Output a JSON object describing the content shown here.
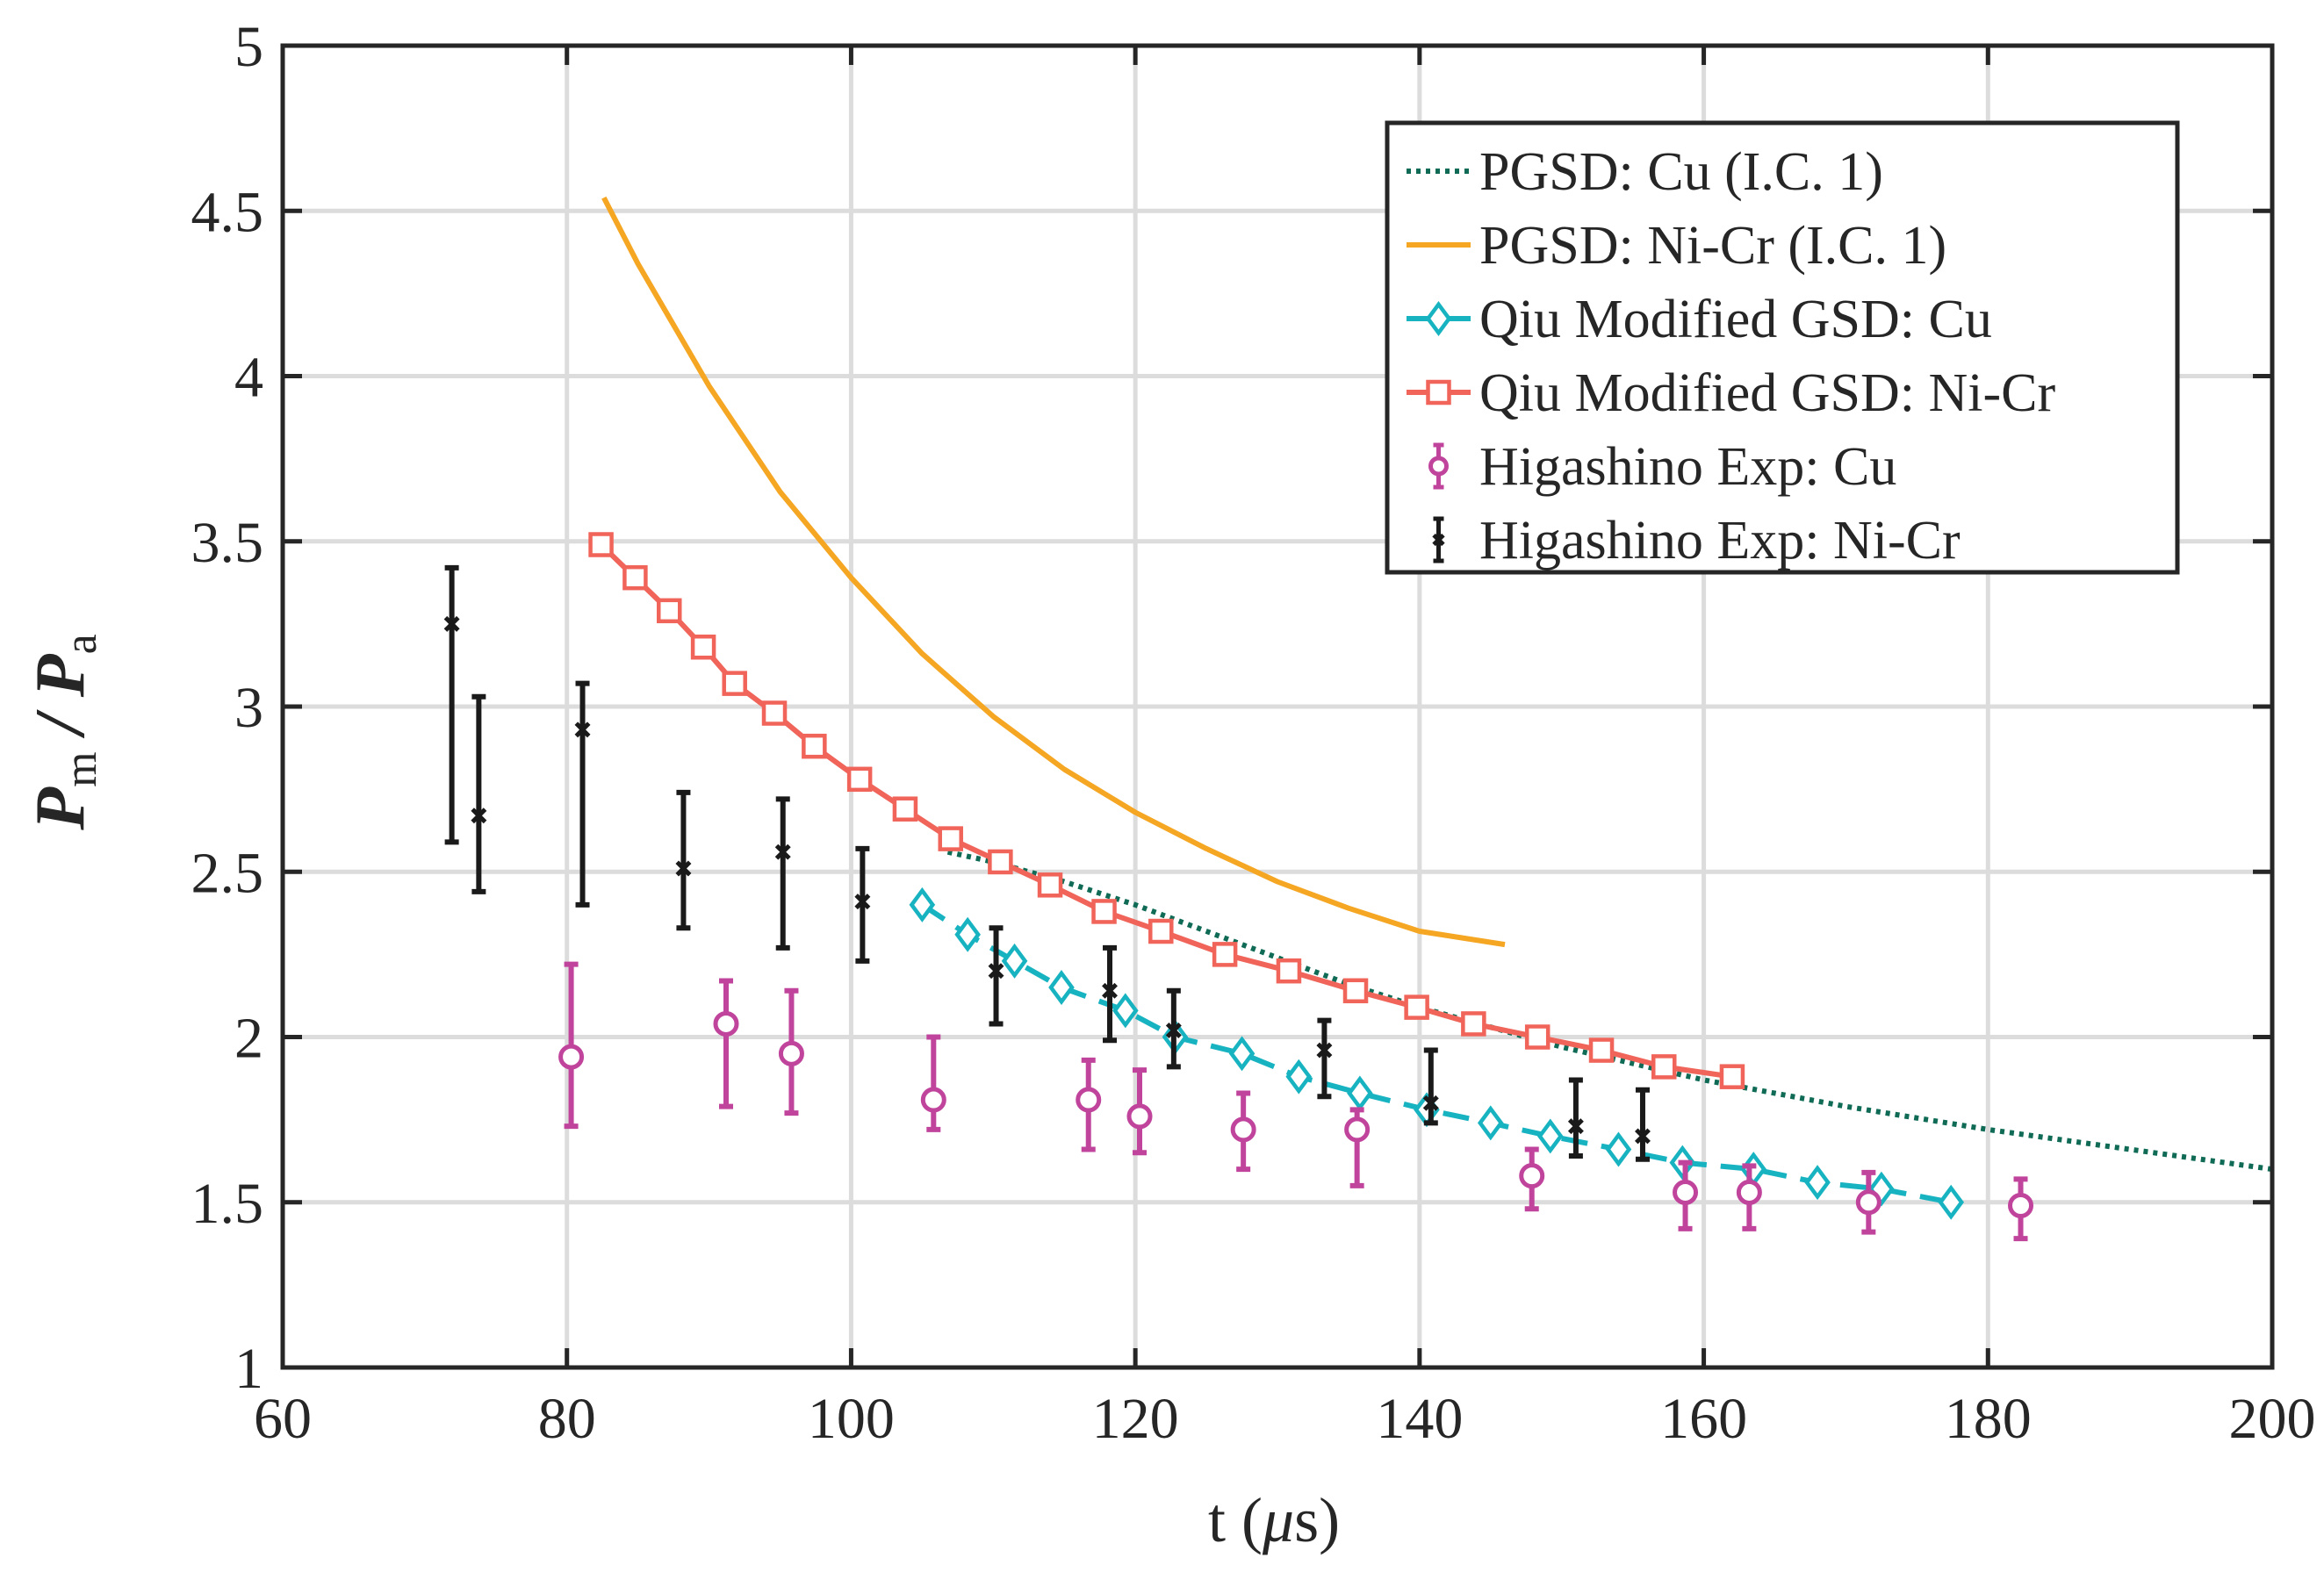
{
  "chart_data": {
    "type": "line",
    "xlabel_prefix": "t (",
    "xlabel_symbol": "μ",
    "xlabel_suffix": "s)",
    "ylabel": {
      "num": "P",
      "num_sub": "m",
      "den": "P",
      "den_sub": "a"
    },
    "xlim": [
      60,
      200
    ],
    "ylim": [
      1,
      5
    ],
    "xticks": [
      60,
      80,
      100,
      120,
      140,
      160,
      180,
      200
    ],
    "xtick_labels": [
      "60",
      "80",
      "100",
      "120",
      "140",
      "160",
      "180",
      "200"
    ],
    "yticks": [
      1,
      1.5,
      2,
      2.5,
      3,
      3.5,
      4,
      4.5,
      5
    ],
    "ytick_labels": [
      "1",
      "1.5",
      "2",
      "2.5",
      "3",
      "3.5",
      "4",
      "4.5",
      "5"
    ],
    "grid": true,
    "legend_position": "top-right",
    "series": [
      {
        "name": "PGSD: Cu (I.C. 1)",
        "style": "dotted",
        "color": "#0f6b55",
        "x": [
          106.8,
          110,
          115,
          120,
          125,
          130,
          135,
          140,
          145,
          150,
          160,
          170,
          180,
          190,
          200
        ],
        "y": [
          2.56,
          2.53,
          2.47,
          2.4,
          2.32,
          2.24,
          2.16,
          2.09,
          2.03,
          1.97,
          1.87,
          1.79,
          1.72,
          1.66,
          1.6
        ]
      },
      {
        "name": "PGSD: Ni-Cr (I.C. 1)",
        "style": "solid",
        "color": "#f5a623",
        "x": [
          82.6,
          85,
          90,
          95,
          100,
          105,
          110,
          115,
          120,
          125,
          130,
          135,
          140,
          146
        ],
        "y": [
          4.54,
          4.34,
          3.97,
          3.65,
          3.39,
          3.16,
          2.97,
          2.81,
          2.68,
          2.57,
          2.47,
          2.39,
          2.32,
          2.28
        ]
      },
      {
        "name": "Qiu Modified GSD: Cu",
        "style": "dashed",
        "marker": "diamond",
        "color": "#17b3c1",
        "x": [
          105,
          108.2,
          111.5,
          114.8,
          119.3,
          122.8,
          127.5,
          131.5,
          135.8,
          140.5,
          145,
          149.2,
          154,
          158.5,
          163.5,
          168,
          172.5,
          177.4
        ],
        "y": [
          2.4,
          2.31,
          2.23,
          2.15,
          2.08,
          2.0,
          1.95,
          1.88,
          1.83,
          1.78,
          1.74,
          1.7,
          1.66,
          1.62,
          1.6,
          1.56,
          1.54,
          1.5
        ]
      },
      {
        "name": "Qiu Modified GSD: Ni-Cr",
        "style": "solid",
        "marker": "square",
        "color": "#f0645a",
        "x": [
          82.4,
          84.8,
          87.2,
          89.6,
          91.8,
          94.6,
          97.4,
          100.6,
          103.8,
          107,
          110.5,
          114,
          117.8,
          121.8,
          126.3,
          130.8,
          135.5,
          139.8,
          143.8,
          148.3,
          152.8,
          157.2,
          162
        ],
        "y": [
          3.49,
          3.39,
          3.29,
          3.18,
          3.07,
          2.98,
          2.88,
          2.78,
          2.69,
          2.6,
          2.53,
          2.46,
          2.38,
          2.32,
          2.25,
          2.2,
          2.14,
          2.09,
          2.04,
          2.0,
          1.96,
          1.91,
          1.88
        ]
      },
      {
        "name": "Higashino Exp: Cu",
        "style": "errorbar",
        "marker": "circle",
        "color": "#c0449c",
        "x": [
          80.3,
          91.2,
          95.8,
          105.8,
          116.7,
          120.3,
          127.6,
          135.6,
          147.9,
          158.7,
          163.2,
          171.6,
          182.3
        ],
        "y": [
          1.94,
          2.04,
          1.95,
          1.81,
          1.81,
          1.76,
          1.72,
          1.72,
          1.58,
          1.53,
          1.53,
          1.5,
          1.49
        ],
        "ylow": [
          1.73,
          1.79,
          1.77,
          1.72,
          1.66,
          1.65,
          1.6,
          1.55,
          1.48,
          1.42,
          1.42,
          1.41,
          1.39
        ],
        "yhigh": [
          2.22,
          2.17,
          2.14,
          2.0,
          1.93,
          1.9,
          1.83,
          1.78,
          1.66,
          1.62,
          1.61,
          1.59,
          1.57
        ]
      },
      {
        "name": "Higashino Exp: Ni-Cr",
        "style": "errorbar",
        "marker": "x",
        "color": "#1a1a1a",
        "x": [
          71.9,
          73.8,
          81.1,
          88.2,
          95.2,
          100.8,
          110.2,
          118.2,
          122.7,
          133.3,
          140.8,
          151,
          155.7
        ],
        "y": [
          3.25,
          2.67,
          2.93,
          2.51,
          2.56,
          2.41,
          2.2,
          2.14,
          2.02,
          1.96,
          1.8,
          1.73,
          1.7
        ],
        "ylow": [
          2.59,
          2.44,
          2.4,
          2.33,
          2.27,
          2.23,
          2.04,
          1.99,
          1.91,
          1.82,
          1.74,
          1.64,
          1.63
        ],
        "yhigh": [
          3.42,
          3.03,
          3.07,
          2.74,
          2.72,
          2.57,
          2.33,
          2.27,
          2.14,
          2.05,
          1.96,
          1.87,
          1.84
        ]
      }
    ]
  }
}
